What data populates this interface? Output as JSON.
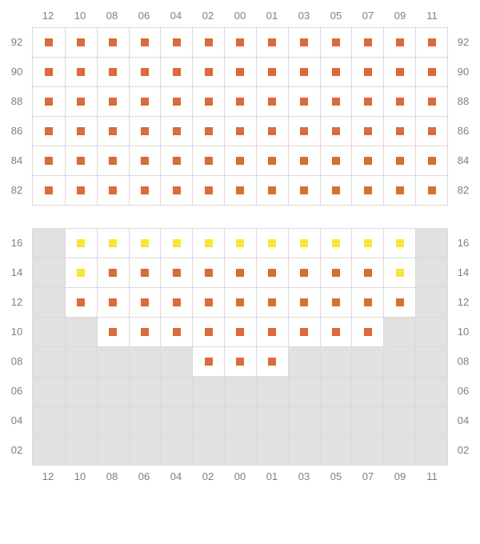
{
  "label_color": "#808080",
  "label_fontsize": 13,
  "divider_color": "#d9d9d9",
  "columns": [
    "12",
    "10",
    "08",
    "06",
    "04",
    "02",
    "00",
    "01",
    "03",
    "05",
    "07",
    "09",
    "11"
  ],
  "colors": {
    "orange": "#d96c3a",
    "yellow": "#f7e635",
    "empty_bg": "#e1e1e1",
    "cell_bg": "#ffffff"
  },
  "sections": [
    {
      "id": "upper",
      "showColsTop": true,
      "showColsBottom": false,
      "rows": [
        {
          "label": "92",
          "cells": [
            "o",
            "o",
            "o",
            "o",
            "o",
            "o",
            "o",
            "o",
            "o",
            "o",
            "o",
            "o",
            "o"
          ]
        },
        {
          "label": "90",
          "cells": [
            "o",
            "o",
            "o",
            "o",
            "o",
            "o",
            "o",
            "o",
            "o",
            "o",
            "o",
            "o",
            "o"
          ]
        },
        {
          "label": "88",
          "cells": [
            "o",
            "o",
            "o",
            "o",
            "o",
            "o",
            "o",
            "o",
            "o",
            "o",
            "o",
            "o",
            "o"
          ]
        },
        {
          "label": "86",
          "cells": [
            "o",
            "o",
            "o",
            "o",
            "o",
            "o",
            "o",
            "o",
            "o",
            "o",
            "o",
            "o",
            "o"
          ]
        },
        {
          "label": "84",
          "cells": [
            "o",
            "o",
            "o",
            "o",
            "o",
            "o",
            "o",
            "o",
            "o",
            "o",
            "o",
            "o",
            "o"
          ]
        },
        {
          "label": "82",
          "cells": [
            "o",
            "o",
            "o",
            "o",
            "o",
            "o",
            "o",
            "o",
            "o",
            "o",
            "o",
            "o",
            "o"
          ]
        }
      ]
    },
    {
      "id": "lower",
      "showColsTop": false,
      "showColsBottom": true,
      "rows": [
        {
          "label": "16",
          "cells": [
            "e",
            "y",
            "y",
            "y",
            "y",
            "y",
            "y",
            "y",
            "y",
            "y",
            "y",
            "y",
            "e"
          ]
        },
        {
          "label": "14",
          "cells": [
            "e",
            "y",
            "o",
            "o",
            "o",
            "o",
            "o",
            "o",
            "o",
            "o",
            "o",
            "y",
            "e"
          ]
        },
        {
          "label": "12",
          "cells": [
            "e",
            "o",
            "o",
            "o",
            "o",
            "o",
            "o",
            "o",
            "o",
            "o",
            "o",
            "o",
            "e"
          ]
        },
        {
          "label": "10",
          "cells": [
            "e",
            "e",
            "o",
            "o",
            "o",
            "o",
            "o",
            "o",
            "o",
            "o",
            "o",
            "e",
            "e"
          ]
        },
        {
          "label": "08",
          "cells": [
            "e",
            "e",
            "e",
            "e",
            "e",
            "o",
            "o",
            "o",
            "e",
            "e",
            "e",
            "e",
            "e"
          ]
        },
        {
          "label": "06",
          "cells": [
            "e",
            "e",
            "e",
            "e",
            "e",
            "e",
            "e",
            "e",
            "e",
            "e",
            "e",
            "e",
            "e"
          ]
        },
        {
          "label": "04",
          "cells": [
            "e",
            "e",
            "e",
            "e",
            "e",
            "e",
            "e",
            "e",
            "e",
            "e",
            "e",
            "e",
            "e"
          ]
        },
        {
          "label": "02",
          "cells": [
            "e",
            "e",
            "e",
            "e",
            "e",
            "e",
            "e",
            "e",
            "e",
            "e",
            "e",
            "e",
            "e"
          ]
        }
      ]
    }
  ]
}
